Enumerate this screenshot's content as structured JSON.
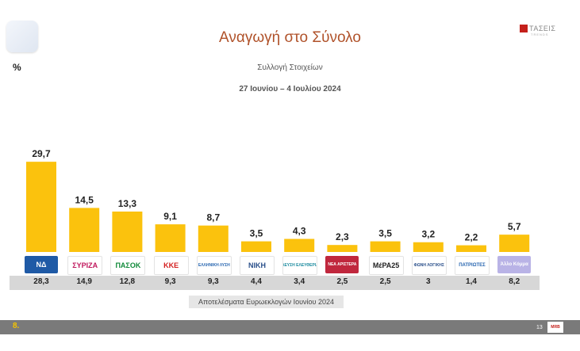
{
  "header": {
    "percent_label": "%",
    "brand_name": "ΤΑΣΕΙΣ",
    "brand_sub": "TRENDS"
  },
  "chart_data": {
    "type": "bar",
    "title": "Αναγωγή στο Σύνολο",
    "subtitle": "Συλλογή Στοιχείων",
    "date_range": "27 Ιουνίου – 4 Ιουλίου 2024",
    "xlabel": "",
    "ylabel": "%",
    "ylim": [
      0,
      30
    ],
    "grid": false,
    "bar_color": "#fbc20d",
    "categories": [
      "ΝΔ",
      "ΣΥΡΙΖΑ",
      "ΠΑΣΟΚ",
      "ΚΚΕ",
      "Ελληνική Λύση",
      "ΝΙΚΗ",
      "Πλεύση Ελευθερίας",
      "Νέα Αριστερά",
      "ΜέΡΑ25",
      "Φωνή Λογικής",
      "Πατριώτες",
      "Άλλο Κόμμα"
    ],
    "values": [
      29.7,
      14.5,
      13.3,
      9.1,
      8.7,
      3.5,
      4.3,
      2.3,
      3.5,
      3.2,
      2.2,
      5.7
    ],
    "value_labels": [
      "29,7",
      "14,5",
      "13,3",
      "9,1",
      "8,7",
      "3,5",
      "4,3",
      "2,3",
      "3,5",
      "3,2",
      "2,2",
      "5,7"
    ],
    "euro_results_label": "Αποτελέσματα Ευρωεκλογών Ιουνίου 2024",
    "euro_results": [
      "28,3",
      "14,9",
      "12,8",
      "9,3",
      "9,3",
      "4,4",
      "3,4",
      "2,5",
      "2,5",
      "3",
      "1,4",
      "8,2"
    ]
  },
  "logos": [
    {
      "name": "nd-logo",
      "text": "ΝΔ",
      "bg": "#1f5aa6",
      "fg": "#ffffff"
    },
    {
      "name": "syriza-logo",
      "text": "ΣΥΡΙΖΑ",
      "bg": "#ffffff",
      "fg": "#c0185d"
    },
    {
      "name": "pasok-logo",
      "text": "ΠΑΣΟΚ",
      "bg": "#ffffff",
      "fg": "#118a3a"
    },
    {
      "name": "kke-logo",
      "text": "ΚΚΕ",
      "bg": "#ffffff",
      "fg": "#d41f1f"
    },
    {
      "name": "elliniki-lysi-logo",
      "text": "ΕΛΛΗΝΙΚΗ ΛΥΣΗ",
      "bg": "#ffffff",
      "fg": "#2866b0"
    },
    {
      "name": "niki-logo",
      "text": "ΝΙΚΗ",
      "bg": "#ffffff",
      "fg": "#2a4f8a"
    },
    {
      "name": "plefsi-logo",
      "text": "ΠΛΕΥΣΗ ΕΛΕΥΘΕΡΙΑΣ",
      "bg": "#ffffff",
      "fg": "#1a8a9e"
    },
    {
      "name": "nea-aristera-logo",
      "text": "ΝΕΑ ΑΡΙΣΤΕΡΑ",
      "bg": "#c0273d",
      "fg": "#ffffff"
    },
    {
      "name": "mera25-logo",
      "text": "ΜέΡΑ25",
      "bg": "#ffffff",
      "fg": "#222222"
    },
    {
      "name": "foni-logikis-logo",
      "text": "ΦΩΝΗ ΛΟΓΙΚΗΣ",
      "bg": "#ffffff",
      "fg": "#2a4f8a"
    },
    {
      "name": "patriotes-logo",
      "text": "ΠΑΤΡΙΩΤΕΣ",
      "bg": "#ffffff",
      "fg": "#2866b0"
    },
    {
      "name": "allo-komma-logo",
      "text": "Άλλο Κόμμα",
      "bg": "#b9b3e6",
      "fg": "#ffffff"
    }
  ],
  "footer": {
    "slide_number": "8.",
    "page_number": "13",
    "logo_text": "MRB"
  }
}
